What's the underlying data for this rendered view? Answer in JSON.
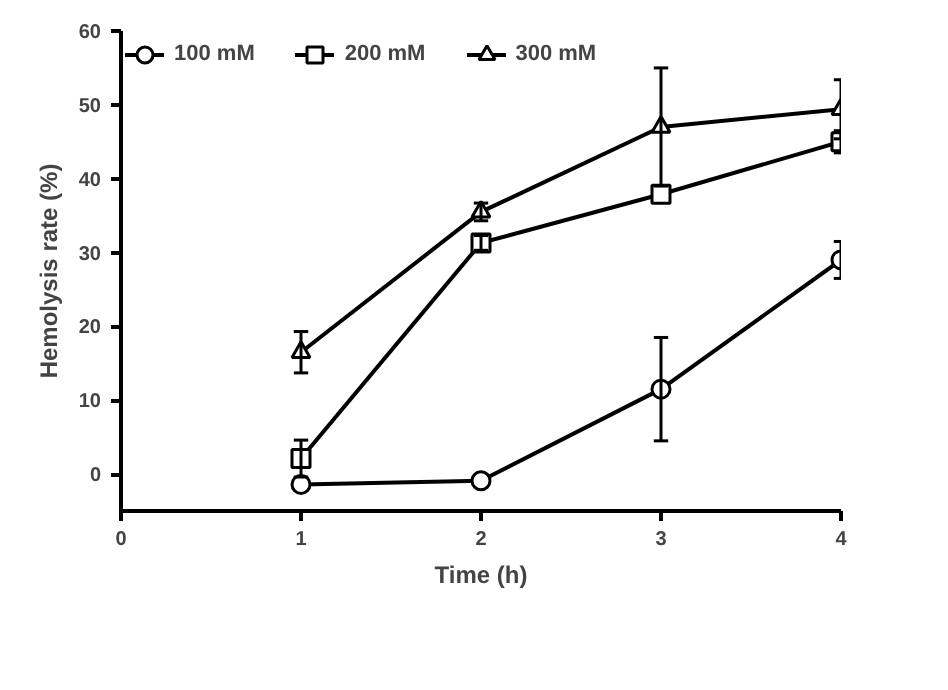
{
  "chart_data": {
    "type": "line",
    "xlabel": "Time (h)",
    "ylabel": "Hemolysis rate (%)",
    "x": [
      1,
      2,
      3,
      4
    ],
    "xlim": [
      0,
      4
    ],
    "xticks": [
      0,
      1,
      2,
      3,
      4
    ],
    "ylim": [
      -5,
      60
    ],
    "yticks": [
      0,
      10,
      20,
      30,
      40,
      50,
      60
    ],
    "grid": false,
    "legend": "top left",
    "series": [
      {
        "name": "100 mM",
        "color": "#000000",
        "marker": "circle",
        "values": [
          -1.4,
          -0.9,
          11.5,
          29
        ],
        "errors": [
          null,
          null,
          7,
          2.5
        ]
      },
      {
        "name": "200 mM",
        "color": "#000000",
        "marker": "square",
        "values": [
          2.1,
          31.3,
          37.9,
          45
        ],
        "errors": [
          2.5,
          1,
          null,
          1.5
        ]
      },
      {
        "name": "300 mM",
        "color": "#000000",
        "marker": "triangle",
        "values": [
          16.5,
          35.5,
          47,
          49.4
        ],
        "errors": [
          2.8,
          1.2,
          8,
          4
        ]
      }
    ]
  }
}
